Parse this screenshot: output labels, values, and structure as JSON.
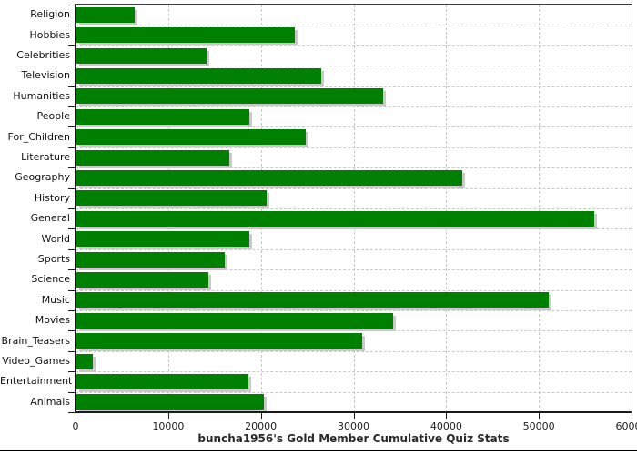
{
  "title": "buncha1956's Gold Member Cumulative Quiz Stats",
  "colors": {
    "bar": "#008000",
    "bar_shadow": "#c9c9c9",
    "grid": "#c9c9c9",
    "axis": "#1a1a1a",
    "plot_border": "#3c3c3c",
    "title_text": "#2b2b2b",
    "label_text": "#111111",
    "background": "#ffffff"
  },
  "chart_data": {
    "type": "bar",
    "orientation": "horizontal",
    "title": "buncha1956's Gold Member Cumulative Quiz Stats",
    "categories": [
      "Religion",
      "Hobbies",
      "Celebrities",
      "Television",
      "Humanities",
      "People",
      "For_Children",
      "Literature",
      "Geography",
      "History",
      "General",
      "World",
      "Sports",
      "Science",
      "Music",
      "Movies",
      "Brain_Teasers",
      "Video_Games",
      "Entertainment",
      "Animals"
    ],
    "values": [
      6400,
      23700,
      14100,
      26500,
      33200,
      18800,
      24800,
      16600,
      41700,
      20600,
      56000,
      18800,
      16100,
      14300,
      51100,
      34300,
      30900,
      1900,
      18700,
      20300
    ],
    "xlim": [
      0,
      60000
    ],
    "x_ticks": [
      0,
      10000,
      20000,
      30000,
      40000,
      50000,
      60000
    ],
    "x_tick_labels": [
      "0",
      "10000",
      "20000",
      "30000",
      "40000",
      "50000",
      "60000"
    ],
    "grid": true,
    "legend": false,
    "bar_color": "#008000"
  }
}
